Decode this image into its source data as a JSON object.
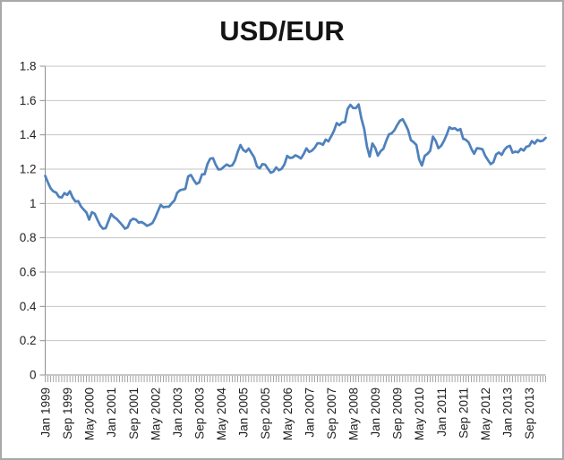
{
  "window": {
    "background": "#ffffff",
    "frame_color": "#a8a8a8"
  },
  "chart_data": {
    "type": "line",
    "title": "USD/EUR",
    "legend": "none",
    "grid": "horizontal",
    "x_start": "Jan 1999",
    "x_end": "Mar 2014",
    "x_frequency": "monthly",
    "xtick_interval_months": 8,
    "xtick_labels": [
      "Jan 1999",
      "Sep 1999",
      "May 2000",
      "Jan 2001",
      "Sep 2001",
      "May 2002",
      "Jan 2003",
      "Sep 2003",
      "May 2004",
      "Jan 2005",
      "Sep 2005",
      "May 2006",
      "Jan 2007",
      "Sep 2007",
      "May 2008",
      "Jan 2009",
      "Sep 2009",
      "May 2010",
      "Jan 2011",
      "Sep 2011",
      "May 2012",
      "Jan 2013",
      "Sep 2013"
    ],
    "ylim": [
      0,
      1.8
    ],
    "ytick_step": 0.2,
    "ytick_labels": [
      "1.8",
      "1.6",
      "1.4",
      "1.2",
      "1",
      "0.8",
      "0.6",
      "0.4",
      "0.2",
      "0"
    ],
    "axis_color": "#8f8f8f",
    "gridline_color": "#c6c6c6",
    "label_color": "#1f1f1f",
    "series": [
      {
        "name": "USD/EUR",
        "color": "#4f81bd",
        "values": [
          1.161,
          1.121,
          1.088,
          1.07,
          1.063,
          1.038,
          1.035,
          1.06,
          1.05,
          1.071,
          1.034,
          1.011,
          1.014,
          0.983,
          0.964,
          0.947,
          0.906,
          0.949,
          0.94,
          0.904,
          0.872,
          0.853,
          0.856,
          0.897,
          0.938,
          0.921,
          0.91,
          0.892,
          0.874,
          0.853,
          0.861,
          0.9,
          0.911,
          0.906,
          0.888,
          0.892,
          0.883,
          0.87,
          0.876,
          0.886,
          0.917,
          0.955,
          0.992,
          0.978,
          0.981,
          0.981,
          1.001,
          1.018,
          1.062,
          1.077,
          1.081,
          1.085,
          1.158,
          1.166,
          1.137,
          1.114,
          1.122,
          1.169,
          1.171,
          1.229,
          1.261,
          1.264,
          1.226,
          1.198,
          1.2,
          1.214,
          1.227,
          1.218,
          1.222,
          1.249,
          1.3,
          1.341,
          1.312,
          1.301,
          1.32,
          1.294,
          1.269,
          1.216,
          1.204,
          1.229,
          1.226,
          1.202,
          1.179,
          1.186,
          1.21,
          1.194,
          1.202,
          1.227,
          1.277,
          1.265,
          1.268,
          1.281,
          1.273,
          1.262,
          1.288,
          1.321,
          1.3,
          1.308,
          1.324,
          1.351,
          1.351,
          1.342,
          1.372,
          1.362,
          1.391,
          1.423,
          1.468,
          1.456,
          1.472,
          1.475,
          1.552,
          1.575,
          1.556,
          1.556,
          1.577,
          1.495,
          1.435,
          1.332,
          1.273,
          1.35,
          1.324,
          1.279,
          1.305,
          1.319,
          1.365,
          1.402,
          1.409,
          1.427,
          1.456,
          1.482,
          1.491,
          1.461,
          1.427,
          1.369,
          1.357,
          1.341,
          1.257,
          1.221,
          1.277,
          1.289,
          1.307,
          1.39,
          1.366,
          1.322,
          1.336,
          1.365,
          1.4,
          1.444,
          1.435,
          1.439,
          1.426,
          1.434,
          1.377,
          1.371,
          1.356,
          1.318,
          1.29,
          1.322,
          1.32,
          1.316,
          1.279,
          1.254,
          1.229,
          1.24,
          1.286,
          1.297,
          1.283,
          1.312,
          1.33,
          1.336,
          1.296,
          1.302,
          1.298,
          1.319,
          1.308,
          1.331,
          1.335,
          1.364,
          1.349,
          1.37,
          1.362,
          1.366,
          1.382
        ]
      }
    ]
  }
}
